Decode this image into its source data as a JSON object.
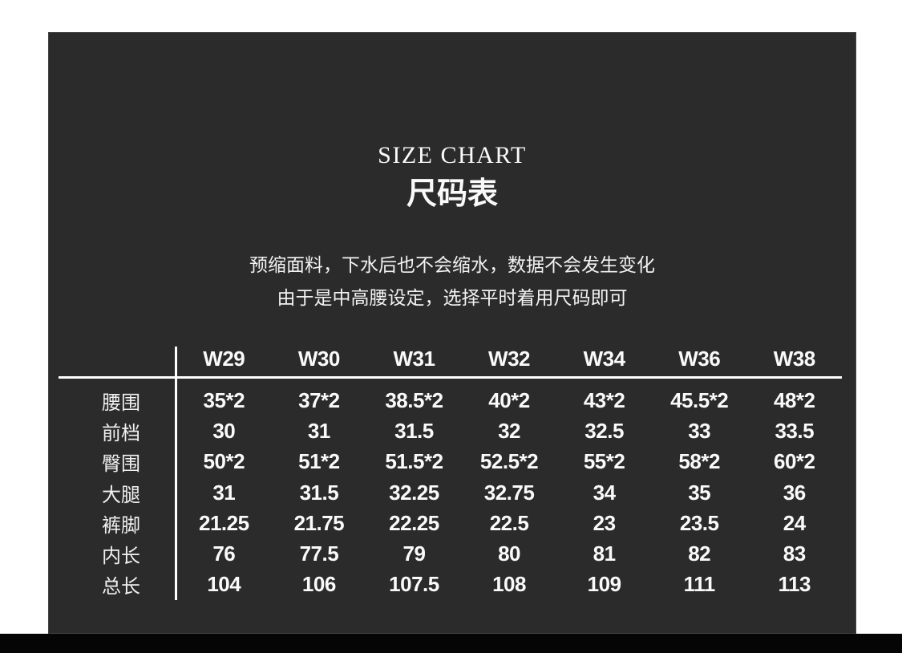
{
  "page": {
    "background_color": "#ffffff",
    "panel_color": "#2b2b2b",
    "bottom_bar_color": "#050505",
    "text_color": "#fafafa"
  },
  "chart_data": {
    "type": "table",
    "title": "SIZE CHART",
    "subtitle": "尺码表",
    "notes": [
      "预缩面料，下水后也不会缩水，数据不会发生变化",
      "由于是中高腰设定，选择平时着用尺码即可"
    ],
    "columns": [
      "W29",
      "W30",
      "W31",
      "W32",
      "W34",
      "W36",
      "W38"
    ],
    "rows": [
      {
        "label": "腰围",
        "values": [
          "35*2",
          "37*2",
          "38.5*2",
          "40*2",
          "43*2",
          "45.5*2",
          "48*2"
        ]
      },
      {
        "label": "前档",
        "values": [
          "30",
          "31",
          "31.5",
          "32",
          "32.5",
          "33",
          "33.5"
        ]
      },
      {
        "label": "臀围",
        "values": [
          "50*2",
          "51*2",
          "51.5*2",
          "52.5*2",
          "55*2",
          "58*2",
          "60*2"
        ]
      },
      {
        "label": "大腿",
        "values": [
          "31",
          "31.5",
          "32.25",
          "32.75",
          "34",
          "35",
          "36"
        ]
      },
      {
        "label": "裤脚",
        "values": [
          "21.25",
          "21.75",
          "22.25",
          "22.5",
          "23",
          "23.5",
          "24"
        ]
      },
      {
        "label": "内长",
        "values": [
          "76",
          "77.5",
          "79",
          "80",
          "81",
          "82",
          "83"
        ]
      },
      {
        "label": "总长",
        "values": [
          "104",
          "106",
          "107.5",
          "108",
          "109",
          "111",
          "113"
        ]
      }
    ]
  }
}
